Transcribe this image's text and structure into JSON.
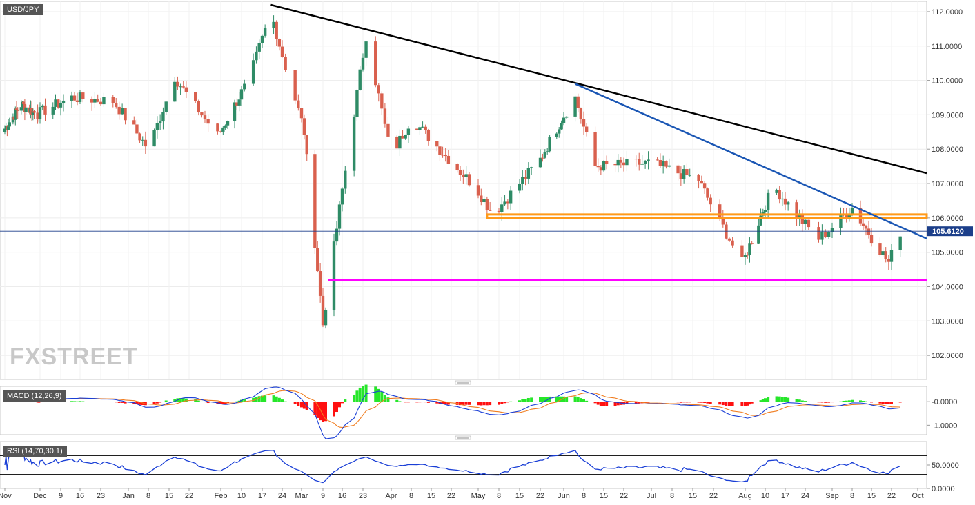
{
  "chart_data": [
    {
      "type": "candlestick",
      "title": "USD/JPY",
      "ylim": [
        101.3,
        112.3
      ],
      "y_ticks": [
        "112.0000",
        "111.0000",
        "110.0000",
        "109.0000",
        "108.0000",
        "107.0000",
        "106.0000",
        "105.0000",
        "104.0000",
        "103.0000",
        "102.0000"
      ],
      "last_price": "105.6120",
      "approx_close_path": [
        {
          "date": "Nov 1",
          "close": 108.6
        },
        {
          "date": "Nov 15",
          "close": 109.3
        },
        {
          "date": "Nov 29",
          "close": 109.0
        },
        {
          "date": "Dec 13",
          "close": 109.5
        },
        {
          "date": "Dec 27",
          "close": 109.4
        },
        {
          "date": "Jan 8",
          "close": 108.0
        },
        {
          "date": "Jan 17",
          "close": 110.1
        },
        {
          "date": "Jan 31",
          "close": 108.4
        },
        {
          "date": "Feb 12",
          "close": 109.9
        },
        {
          "date": "Feb 20",
          "close": 112.0
        },
        {
          "date": "Mar 2",
          "close": 108.5
        },
        {
          "date": "Mar 9",
          "close": 102.9
        },
        {
          "date": "Mar 24",
          "close": 111.3
        },
        {
          "date": "Apr 1",
          "close": 107.8
        },
        {
          "date": "Apr 8",
          "close": 108.9
        },
        {
          "date": "Apr 30",
          "close": 106.9
        },
        {
          "date": "May 6",
          "close": 106.1
        },
        {
          "date": "May 22",
          "close": 107.7
        },
        {
          "date": "Jun 5",
          "close": 109.5
        },
        {
          "date": "Jun 12",
          "close": 107.5
        },
        {
          "date": "Jul 1",
          "close": 107.6
        },
        {
          "date": "Jul 17",
          "close": 107.1
        },
        {
          "date": "Jul 31",
          "close": 104.7
        },
        {
          "date": "Aug 13",
          "close": 106.9
        },
        {
          "date": "Aug 28",
          "close": 105.4
        },
        {
          "date": "Sep 8",
          "close": 106.3
        },
        {
          "date": "Sep 21",
          "close": 104.7
        },
        {
          "date": "Sep 25",
          "close": 105.6
        }
      ],
      "overlays": {
        "black_trendline": {
          "from": {
            "date": "Feb 20",
            "price": 112.2
          },
          "to": {
            "date": "Oct 1",
            "price": 107.3
          },
          "color": "#000000"
        },
        "blue_trendline": {
          "from": {
            "date": "Jun 5",
            "price": 109.9
          },
          "to": {
            "date": "Oct 1",
            "price": 105.4
          },
          "color": "#1a56b4"
        },
        "orange_zone": {
          "price_low": 106.0,
          "price_high": 106.1,
          "from": {
            "date": "May 4"
          },
          "color": "#ff9a1a"
        },
        "magenta_support": {
          "price": 104.18,
          "from": {
            "date": "Mar 11"
          },
          "color": "#ff00ff"
        }
      },
      "watermark": "FXSTREET"
    },
    {
      "type": "macd",
      "label": "MACD (12,26,9)",
      "y_ticks": [
        "-0.0000",
        "-1.0000"
      ],
      "ylim": [
        -1.4,
        0.65
      ]
    },
    {
      "type": "line",
      "label": "RSI (14,70,30,1)",
      "y_ticks": [
        "50.0000",
        "0.0000"
      ],
      "ylim": [
        0,
        100
      ],
      "levels": [
        70,
        30
      ]
    }
  ],
  "x_axis": [
    "Nov",
    "Dec",
    "9",
    "16",
    "23",
    "Jan",
    "8",
    "15",
    "22",
    "Feb",
    "10",
    "17",
    "24",
    "Mar",
    "9",
    "16",
    "23",
    "Apr",
    "8",
    "15",
    "22",
    "May",
    "8",
    "15",
    "22",
    "Jun",
    "8",
    "15",
    "22",
    "Jul",
    "8",
    "15",
    "22",
    "Aug",
    "10",
    "17",
    "24",
    "Sep",
    "8",
    "15",
    "22",
    "Oct"
  ],
  "colors": {
    "up": "#2e8b66",
    "down": "#d9604e",
    "macd_line": "#1a3fd6",
    "signal_line": "#f07d20",
    "hist_up": "#26e62a",
    "hist_down": "#ff1010",
    "rsi_line": "#1a3fd6",
    "accent": "#4a4a4a"
  }
}
